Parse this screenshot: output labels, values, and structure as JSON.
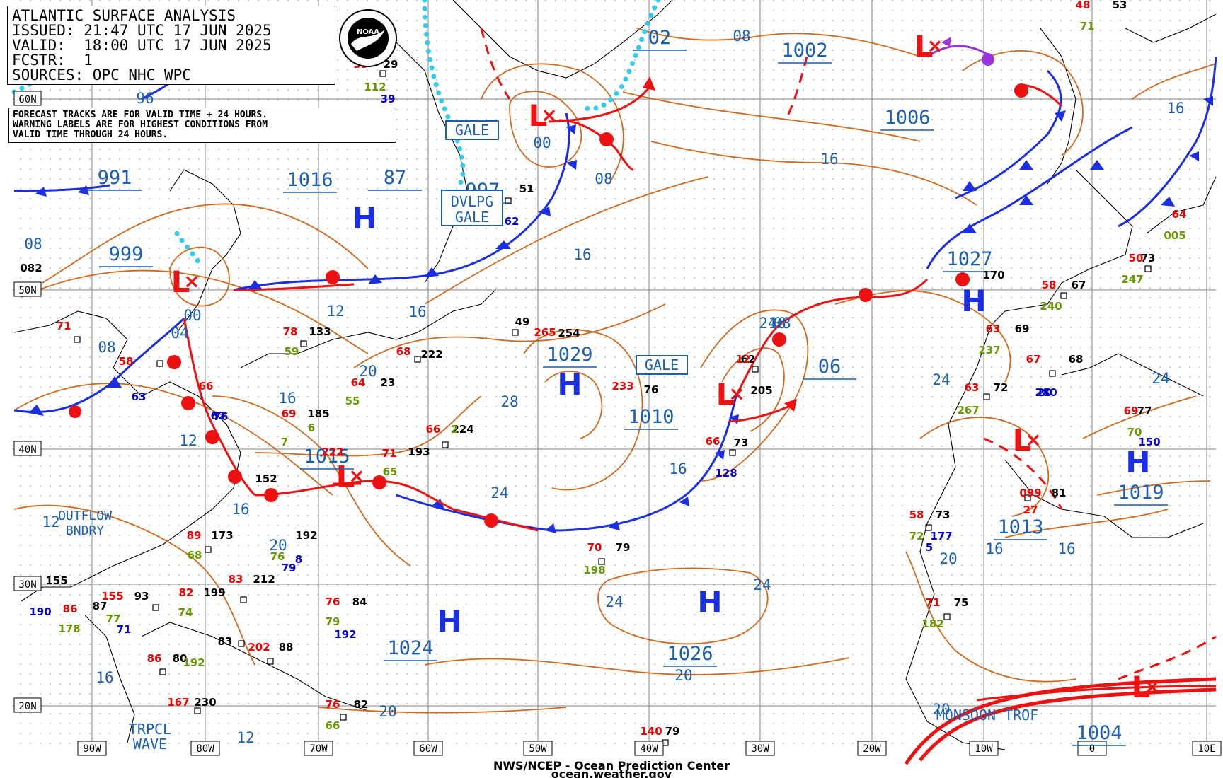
{
  "header": {
    "lines": [
      "ATLANTIC SURFACE ANALYSIS",
      "ISSUED: 21:47 UTC 17 JUN 2025",
      "VALID:  18:00 UTC 17 JUN 2025",
      "FCSTR:  1",
      "SOURCES: OPC NHC WPC"
    ],
    "note_lines": [
      "FORECAST TRACKS ARE FOR VALID TIME + 24 HOURS.",
      "WARNING LABELS ARE FOR HIGHEST CONDITIONS FROM",
      "VALID TIME THROUGH 24 HOURS."
    ],
    "logo_text": "NOAA"
  },
  "footer": {
    "center": "NWS/NCEP - Ocean Prediction Center",
    "url": "ocean.weather.gov"
  },
  "colors": {
    "front_blue": "#1a2ee6",
    "front_red": "#ee1111",
    "isobar": "#d2691e",
    "label_blue": "#1a5fb4",
    "ice": "#33ccee",
    "occluded": "#9933dd",
    "grid": "#aaaaaa"
  },
  "axes": {
    "lat_labels": [
      "60N",
      "50N",
      "40N",
      "30N",
      "20N"
    ],
    "lon_labels": [
      "90W",
      "80W",
      "70W",
      "60W",
      "50W",
      "40W",
      "30W",
      "20W",
      "10W",
      "0",
      "10E"
    ]
  },
  "pressure_centers": [
    {
      "type": "H",
      "pressure": "1029"
    },
    {
      "type": "H",
      "pressure": "1024"
    },
    {
      "type": "H",
      "pressure": "1026"
    },
    {
      "type": "H",
      "pressure": "1027"
    },
    {
      "type": "H",
      "pressure": "1019"
    },
    {
      "type": "H",
      "pressure": "1016"
    },
    {
      "type": "L",
      "pressure": "999"
    },
    {
      "type": "L",
      "pressure": "1015"
    },
    {
      "type": "L",
      "pressure": "1010"
    },
    {
      "type": "L",
      "pressure": "997"
    },
    {
      "type": "L",
      "pressure": "1013"
    },
    {
      "type": "L",
      "pressure": "1004"
    },
    {
      "type": "L",
      "pressure": "1006"
    }
  ],
  "isobar_labels": [
    "991",
    "1016",
    "87",
    "999",
    "1015",
    "1002",
    "1006",
    "1029",
    "1010",
    "06",
    "02",
    "1024",
    "1026",
    "1027",
    "1013",
    "1019",
    "1004",
    "997",
    "96",
    "08",
    "08",
    "08",
    "08",
    "16",
    "16",
    "16",
    "16",
    "16",
    "16",
    "16",
    "16",
    "16",
    "16",
    "12",
    "12",
    "12",
    "12",
    "20",
    "20",
    "20",
    "20",
    "20",
    "20",
    "24",
    "24",
    "24",
    "24",
    "24",
    "24",
    "28",
    "04",
    "00",
    "00",
    "08",
    "16",
    "20"
  ],
  "warnings": [
    "GALE",
    "DVLPG GALE",
    "GALE"
  ],
  "annotations": [
    "OUTFLOW BNDRY",
    "TRPCL WAVE",
    "MONSOON TROF"
  ],
  "observations": [
    "082",
    "71",
    "58",
    "66",
    "62",
    "78",
    "59",
    "133",
    "69",
    "185",
    "55",
    "23",
    "64",
    "222",
    "68",
    "66",
    "224",
    "193",
    "71",
    "65",
    "152",
    "89",
    "68",
    "173",
    "192",
    "76",
    "79",
    "212",
    "83",
    "199",
    "82",
    "74",
    "155",
    "86",
    "190",
    "87",
    "155",
    "93",
    "71",
    "77",
    "178",
    "80",
    "86",
    "192",
    "83",
    "202",
    "88",
    "167",
    "230",
    "84",
    "76",
    "79",
    "192",
    "82",
    "76",
    "66",
    "222",
    "49",
    "265",
    "254",
    "76",
    "233",
    "79",
    "70",
    "198",
    "79",
    "140",
    "73",
    "66",
    "128",
    "62",
    "12",
    "205",
    "73",
    "58",
    "72",
    "5",
    "177",
    "75",
    "71",
    "182",
    "72",
    "63",
    "267",
    "69",
    "63",
    "237",
    "68",
    "67",
    "280",
    "67",
    "58",
    "240",
    "73",
    "50",
    "247",
    "170",
    "77",
    "69",
    "70",
    "150",
    "81",
    "099",
    "53",
    "48",
    "71",
    "64",
    "005",
    "29",
    "33",
    "112",
    "39",
    "51",
    "62",
    "63",
    "76",
    "20",
    "27",
    "7",
    "6",
    "2",
    "8"
  ]
}
